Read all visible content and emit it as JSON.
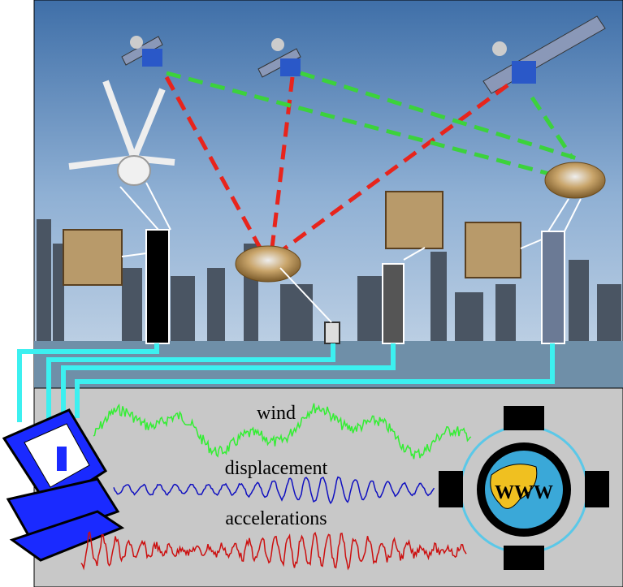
{
  "signals": [
    {
      "label": "wind"
    },
    {
      "label": "displacement"
    },
    {
      "label": "accelerations"
    }
  ],
  "web_label": "WWW"
}
